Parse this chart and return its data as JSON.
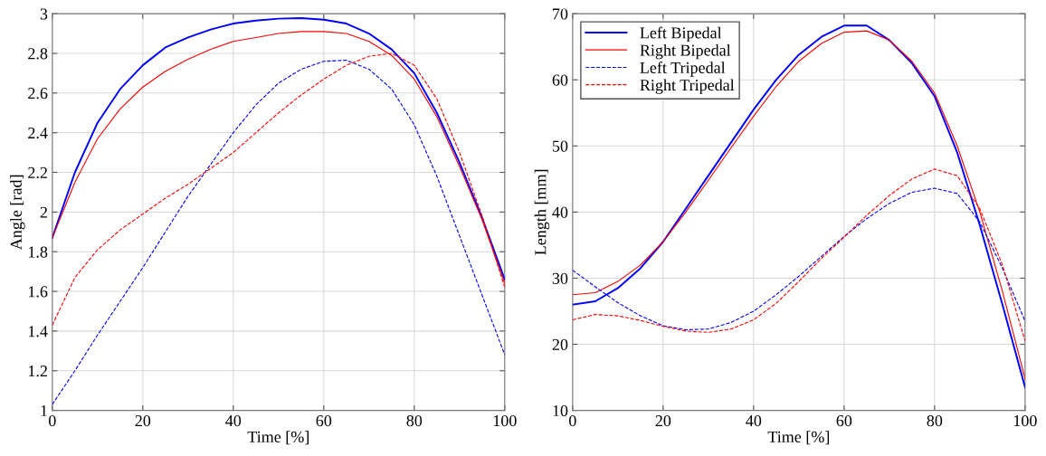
{
  "chart_data": [
    {
      "type": "line",
      "xlabel": "Time [%]",
      "ylabel": "Angle [rad]",
      "xlim": [
        0,
        100
      ],
      "xticks": [
        0,
        20,
        40,
        60,
        80,
        100
      ],
      "ylim": [
        1,
        3
      ],
      "yticks": [
        1,
        {
          "value": 1.2,
          "label": "1.2"
        },
        {
          "value": 1.4,
          "label": "1.4"
        },
        {
          "value": 1.6,
          "label": "1.6"
        },
        {
          "value": 1.8,
          "label": "1.8"
        },
        2,
        {
          "value": 2.2,
          "label": "2.2"
        },
        {
          "value": 2.4,
          "label": "2.4"
        },
        {
          "value": 2.6,
          "label": "2.6"
        },
        {
          "value": 2.8,
          "label": "2.8"
        },
        3
      ],
      "grid": true,
      "legend": false,
      "x": [
        0,
        5,
        10,
        15,
        20,
        25,
        30,
        35,
        40,
        45,
        50,
        55,
        60,
        65,
        70,
        75,
        80,
        85,
        90,
        95,
        100
      ],
      "series": [
        {
          "color": "#0000ff",
          "line_style": "solid",
          "values": [
            1.87,
            2.2,
            2.45,
            2.62,
            2.74,
            2.83,
            2.88,
            2.92,
            2.95,
            2.965,
            2.975,
            2.978,
            2.97,
            2.95,
            2.9,
            2.82,
            2.7,
            2.5,
            2.25,
            1.97,
            1.66
          ]
        },
        {
          "color": "#ff0000",
          "line_style": "solid",
          "values": [
            1.87,
            2.15,
            2.37,
            2.52,
            2.63,
            2.71,
            2.77,
            2.82,
            2.86,
            2.88,
            2.9,
            2.91,
            2.91,
            2.9,
            2.86,
            2.79,
            2.67,
            2.48,
            2.23,
            1.96,
            1.64
          ]
        },
        {
          "color": "#0000ff",
          "line_style": "dashed",
          "values": [
            1.03,
            1.2,
            1.38,
            1.55,
            1.72,
            1.9,
            2.08,
            2.24,
            2.4,
            2.54,
            2.65,
            2.72,
            2.76,
            2.765,
            2.72,
            2.62,
            2.44,
            2.18,
            1.88,
            1.58,
            1.28
          ]
        },
        {
          "color": "#ff0000",
          "line_style": "dashed",
          "values": [
            1.43,
            1.67,
            1.81,
            1.91,
            1.99,
            2.07,
            2.14,
            2.22,
            2.3,
            2.4,
            2.5,
            2.59,
            2.67,
            2.74,
            2.785,
            2.8,
            2.74,
            2.57,
            2.3,
            1.98,
            1.62
          ]
        }
      ]
    },
    {
      "type": "line",
      "xlabel": "Time [%]",
      "ylabel": "Length [mm]",
      "xlim": [
        0,
        100
      ],
      "xticks": [
        0,
        20,
        40,
        60,
        80,
        100
      ],
      "ylim": [
        10,
        70
      ],
      "yticks": [
        10,
        20,
        30,
        40,
        50,
        60,
        70
      ],
      "grid": true,
      "legend": "top left",
      "x": [
        0,
        5,
        10,
        15,
        20,
        25,
        30,
        35,
        40,
        45,
        50,
        55,
        60,
        65,
        70,
        75,
        80,
        85,
        90,
        95,
        100
      ],
      "series": [
        {
          "name": "Left Bipedal",
          "color": "#0000ff",
          "line_style": "solid",
          "values": [
            26,
            26.5,
            28.5,
            31.5,
            35.5,
            40.5,
            45.5,
            50.5,
            55.5,
            60,
            63.8,
            66.5,
            68.2,
            68.2,
            66,
            62.5,
            57.5,
            49,
            38,
            26,
            13.5
          ]
        },
        {
          "name": "Right Bipedal",
          "color": "#ff0000",
          "line_style": "solid",
          "values": [
            27.5,
            27.8,
            29.5,
            32,
            35.5,
            40,
            44.8,
            49.7,
            54.5,
            59,
            62.8,
            65.5,
            67.2,
            67.4,
            66,
            62.8,
            58,
            50,
            40,
            28,
            14.8
          ]
        },
        {
          "name": "Left Tripedal",
          "color": "#0000ff",
          "line_style": "dashed",
          "values": [
            31.2,
            28.7,
            26.3,
            24.3,
            22.8,
            22.2,
            22.3,
            23.3,
            25,
            27.5,
            30.3,
            33.3,
            36.3,
            39,
            41.3,
            43,
            43.6,
            42.8,
            38.5,
            31.5,
            23.5
          ]
        },
        {
          "name": "Right Tripedal",
          "color": "#ff0000",
          "line_style": "dashed",
          "values": [
            23.7,
            24.5,
            24.3,
            23.6,
            22.7,
            22,
            21.8,
            22.3,
            23.7,
            26.2,
            29.5,
            33,
            36.2,
            39.5,
            42.5,
            45,
            46.5,
            45.5,
            40.5,
            32,
            20.5
          ]
        }
      ]
    }
  ]
}
